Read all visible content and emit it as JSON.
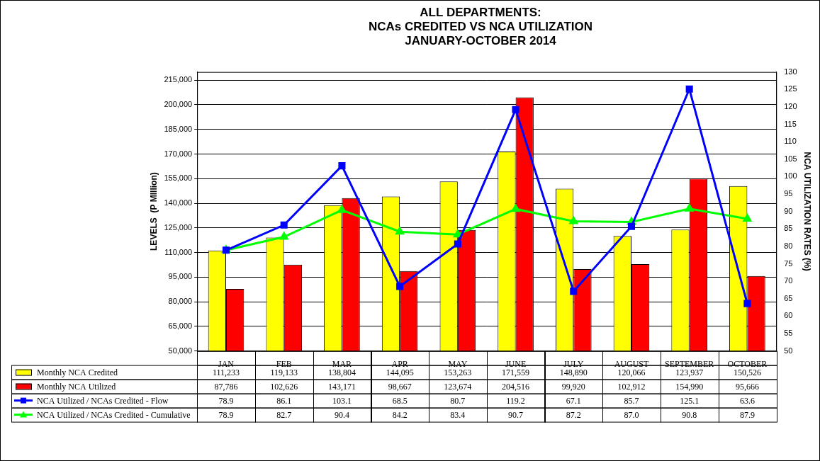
{
  "chart_data": {
    "type": "bar",
    "title": "ALL DEPARTMENTS:\nNCAs CREDITED VS NCA UTILIZATION\nJANUARY-OCTOBER 2014",
    "y_label": "LEVELS  (P MIllion)",
    "y2_label": "NCA UTILIZATION RATES (%)",
    "categories": [
      "JAN",
      "FEB",
      "MAR",
      "APR",
      "MAY",
      "JUNE",
      "JULY",
      "AUGUST",
      "SEPTEMBER",
      "OCTOBER"
    ],
    "series": [
      {
        "name": "Monthly NCA Credited",
        "type": "bar",
        "color": "#ffff00",
        "values": [
          111233,
          119133,
          138804,
          144095,
          153263,
          171559,
          148890,
          120066,
          123937,
          150526
        ],
        "value_labels": [
          "111,233",
          "119,133",
          "138,804",
          "144,095",
          "153,263",
          "171,559",
          "148,890",
          "120,066",
          "123,937",
          "150,526"
        ]
      },
      {
        "name": "Monthly NCA Utilized",
        "type": "bar",
        "color": "#ff0000",
        "values": [
          87786,
          102626,
          143171,
          98667,
          123674,
          204516,
          99920,
          102912,
          154990,
          95666
        ],
        "value_labels": [
          "87,786",
          "102,626",
          "143,171",
          "98,667",
          "123,674",
          "204,516",
          "99,920",
          "102,912",
          "154,990",
          "95,666"
        ]
      },
      {
        "name": "NCA Utilized / NCAs Credited - Flow",
        "type": "line",
        "axis": "y2",
        "color": "#0000ff",
        "marker": "square",
        "line_style": "solid",
        "values": [
          78.9,
          86.1,
          103.1,
          68.5,
          80.7,
          119.2,
          67.1,
          85.7,
          125.1,
          63.6
        ],
        "value_labels": [
          "78.9",
          "86.1",
          "103.1",
          "68.5",
          "80.7",
          "119.2",
          "67.1",
          "85.7",
          "125.1",
          "63.6"
        ]
      },
      {
        "name": "NCA Utilized / NCAs Credited - Cumulative",
        "type": "line",
        "axis": "y2",
        "color": "#00ff00",
        "marker": "triangle",
        "line_style": "solid",
        "values": [
          78.9,
          82.7,
          90.4,
          84.2,
          83.4,
          90.7,
          87.2,
          87.0,
          90.8,
          87.9
        ],
        "value_labels": [
          "78.9",
          "82.7",
          "90.4",
          "84.2",
          "83.4",
          "90.7",
          "87.2",
          "87.0",
          "90.8",
          "87.9"
        ]
      }
    ],
    "ylim": [
      50000,
      220000
    ],
    "yticks": [
      {
        "value": 50000,
        "label": "50,000"
      },
      {
        "value": 65000,
        "label": "65,000"
      },
      {
        "value": 80000,
        "label": "80,000"
      },
      {
        "value": 95000,
        "label": "95,000"
      },
      {
        "value": 110000,
        "label": "110,000"
      },
      {
        "value": 125000,
        "label": "125,000"
      },
      {
        "value": 140000,
        "label": "140,000"
      },
      {
        "value": 155000,
        "label": "155,000"
      },
      {
        "value": 170000,
        "label": "170,000"
      },
      {
        "value": 185000,
        "label": "185,000"
      },
      {
        "value": 200000,
        "label": "200,000"
      },
      {
        "value": 215000,
        "label": "215,000"
      }
    ],
    "y2lim": [
      50,
      130
    ],
    "y2ticks": [
      50,
      55,
      60,
      65,
      70,
      75,
      80,
      85,
      90,
      95,
      100,
      105,
      110,
      115,
      120,
      125,
      130
    ],
    "grid": true,
    "legend": "bottom"
  }
}
